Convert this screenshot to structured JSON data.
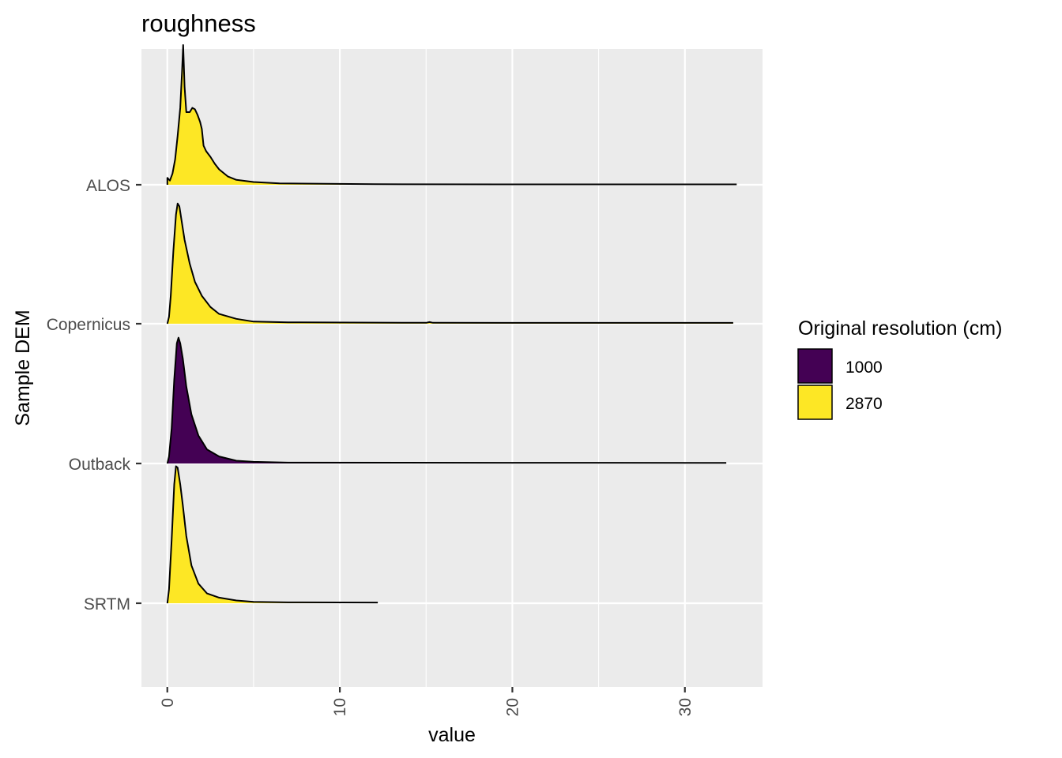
{
  "chart_data": {
    "type": "ridgeline",
    "title": "roughness",
    "xlabel": "value",
    "ylabel": "Sample DEM",
    "xlim": [
      -1.5,
      34.5
    ],
    "x_ticks": [
      0,
      10,
      20,
      30
    ],
    "grid": true,
    "legend": {
      "title": "Original resolution (cm)",
      "position": "right",
      "entries": [
        {
          "label": "1000",
          "color": "#440154"
        },
        {
          "label": "2870",
          "color": "#FDE725"
        }
      ]
    },
    "series": [
      {
        "name": "ALOS",
        "resolution": "2870",
        "x_max": 33,
        "density": [
          [
            0,
            0.05
          ],
          [
            0.15,
            0.03
          ],
          [
            0.3,
            0.08
          ],
          [
            0.45,
            0.18
          ],
          [
            0.6,
            0.35
          ],
          [
            0.75,
            0.55
          ],
          [
            0.85,
            0.8
          ],
          [
            0.92,
            1.0
          ],
          [
            1.0,
            0.7
          ],
          [
            1.1,
            0.52
          ],
          [
            1.3,
            0.52
          ],
          [
            1.45,
            0.55
          ],
          [
            1.6,
            0.54
          ],
          [
            1.75,
            0.5
          ],
          [
            1.9,
            0.45
          ],
          [
            2.0,
            0.4
          ],
          [
            2.1,
            0.28
          ],
          [
            2.25,
            0.24
          ],
          [
            2.5,
            0.2
          ],
          [
            2.75,
            0.15
          ],
          [
            3.0,
            0.11
          ],
          [
            3.5,
            0.06
          ],
          [
            4.0,
            0.035
          ],
          [
            5.0,
            0.02
          ],
          [
            6.5,
            0.01
          ],
          [
            12,
            0.004
          ],
          [
            20,
            0.003
          ],
          [
            33,
            0.003
          ]
        ]
      },
      {
        "name": "Copernicus",
        "resolution": "2870",
        "x_max": 32.8,
        "density": [
          [
            0,
            0
          ],
          [
            0.1,
            0.05
          ],
          [
            0.2,
            0.2
          ],
          [
            0.35,
            0.52
          ],
          [
            0.5,
            0.78
          ],
          [
            0.6,
            0.86
          ],
          [
            0.7,
            0.84
          ],
          [
            0.85,
            0.72
          ],
          [
            1.0,
            0.6
          ],
          [
            1.3,
            0.43
          ],
          [
            1.6,
            0.3
          ],
          [
            2.0,
            0.2
          ],
          [
            2.5,
            0.12
          ],
          [
            3.0,
            0.07
          ],
          [
            4.0,
            0.035
          ],
          [
            5.0,
            0.015
          ],
          [
            7.0,
            0.01
          ],
          [
            15,
            0.007
          ],
          [
            15.2,
            0.012
          ],
          [
            15.4,
            0.007
          ],
          [
            32.8,
            0.006
          ]
        ]
      },
      {
        "name": "Outback",
        "resolution": "1000",
        "x_max": 32.4,
        "density": [
          [
            0,
            0
          ],
          [
            0.1,
            0.05
          ],
          [
            0.25,
            0.25
          ],
          [
            0.4,
            0.6
          ],
          [
            0.55,
            0.86
          ],
          [
            0.65,
            0.9
          ],
          [
            0.75,
            0.86
          ],
          [
            0.9,
            0.75
          ],
          [
            1.1,
            0.55
          ],
          [
            1.4,
            0.35
          ],
          [
            1.8,
            0.2
          ],
          [
            2.3,
            0.1
          ],
          [
            3.0,
            0.05
          ],
          [
            4.0,
            0.02
          ],
          [
            5.0,
            0.012
          ],
          [
            7.0,
            0.006
          ],
          [
            32.4,
            0.004
          ]
        ]
      },
      {
        "name": "SRTM",
        "resolution": "2870",
        "x_max": 12.2,
        "density": [
          [
            0,
            0
          ],
          [
            0.1,
            0.1
          ],
          [
            0.25,
            0.45
          ],
          [
            0.4,
            0.85
          ],
          [
            0.5,
            0.98
          ],
          [
            0.6,
            0.97
          ],
          [
            0.75,
            0.85
          ],
          [
            0.9,
            0.7
          ],
          [
            1.1,
            0.48
          ],
          [
            1.4,
            0.27
          ],
          [
            1.8,
            0.14
          ],
          [
            2.3,
            0.07
          ],
          [
            3.0,
            0.04
          ],
          [
            4.0,
            0.02
          ],
          [
            5.0,
            0.01
          ],
          [
            7.0,
            0.006
          ],
          [
            12.2,
            0.005
          ]
        ]
      }
    ]
  }
}
